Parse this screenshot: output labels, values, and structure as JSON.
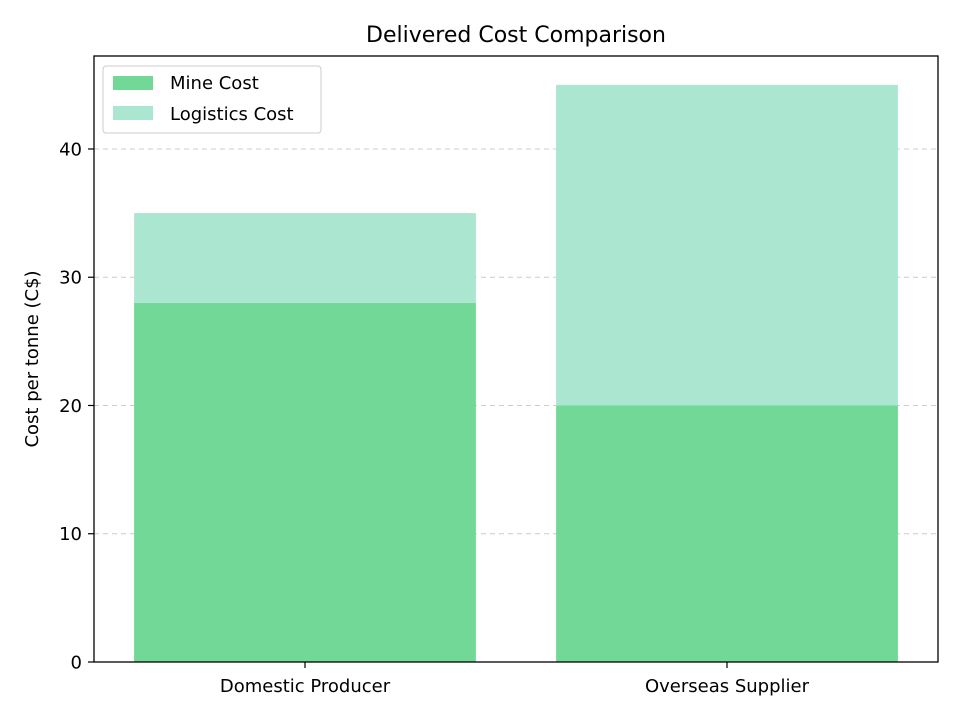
{
  "chart_data": {
    "type": "bar",
    "stacked": true,
    "title": "Delivered Cost Comparison",
    "xlabel": "",
    "ylabel": "Cost per tonne (C$)",
    "categories": [
      "Domestic Producer",
      "Overseas Supplier"
    ],
    "series": [
      {
        "name": "Mine Cost",
        "values": [
          28,
          20
        ],
        "color": "#72d898"
      },
      {
        "name": "Logistics Cost",
        "values": [
          7,
          25
        ],
        "color": "#aae6d0"
      }
    ],
    "ylim": [
      0,
      47.25
    ],
    "yticks": [
      0,
      10,
      20,
      30,
      40
    ],
    "grid": {
      "axis": "y",
      "style": "dashed",
      "color": "#cccccc"
    },
    "legend": {
      "position": "top-left",
      "entries": [
        "Mine Cost",
        "Logistics Cost"
      ]
    }
  }
}
